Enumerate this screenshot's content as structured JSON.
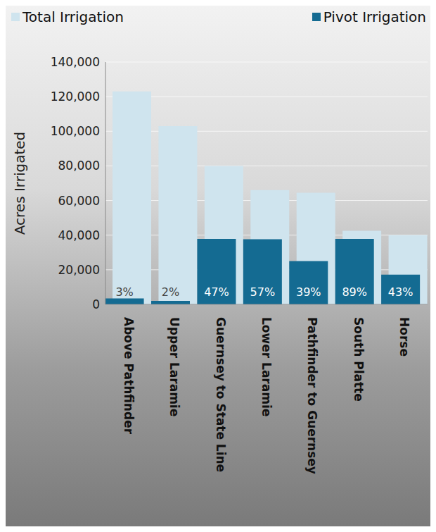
{
  "chart_data": {
    "type": "bar",
    "y_label": "Acres Irrigated",
    "categories": [
      "Above Pathfinder",
      "Upper Laramie",
      "Guernsey to State Line",
      "Lower Laramie",
      "Pathfinder to Guernsey",
      "South Platte",
      "Horse"
    ],
    "series": [
      {
        "name": "Total Irrigation",
        "color": "#cfe4ee",
        "values": [
          123000,
          103000,
          80000,
          66000,
          64500,
          42500,
          40000
        ]
      },
      {
        "name": "Pivot Irrigation",
        "color": "#146b92",
        "values": [
          3500,
          2000,
          37800,
          37600,
          25000,
          37800,
          17200
        ],
        "share_labels": [
          "3%",
          "2%",
          "47%",
          "57%",
          "39%",
          "89%",
          "43%"
        ]
      }
    ],
    "ylim": [
      0,
      140000
    ],
    "yticks": [
      {
        "value": 0,
        "label": "0"
      },
      {
        "value": 20000,
        "label": "20,000"
      },
      {
        "value": 40000,
        "label": "40,000"
      },
      {
        "value": 60000,
        "label": "60,000"
      },
      {
        "value": 80000,
        "label": "80,000"
      },
      {
        "value": 100000,
        "label": "100,000"
      },
      {
        "value": 120000,
        "label": "120,000"
      },
      {
        "value": 140000,
        "label": "140,000"
      }
    ],
    "grid": true,
    "legend": "top",
    "overlap": true
  }
}
